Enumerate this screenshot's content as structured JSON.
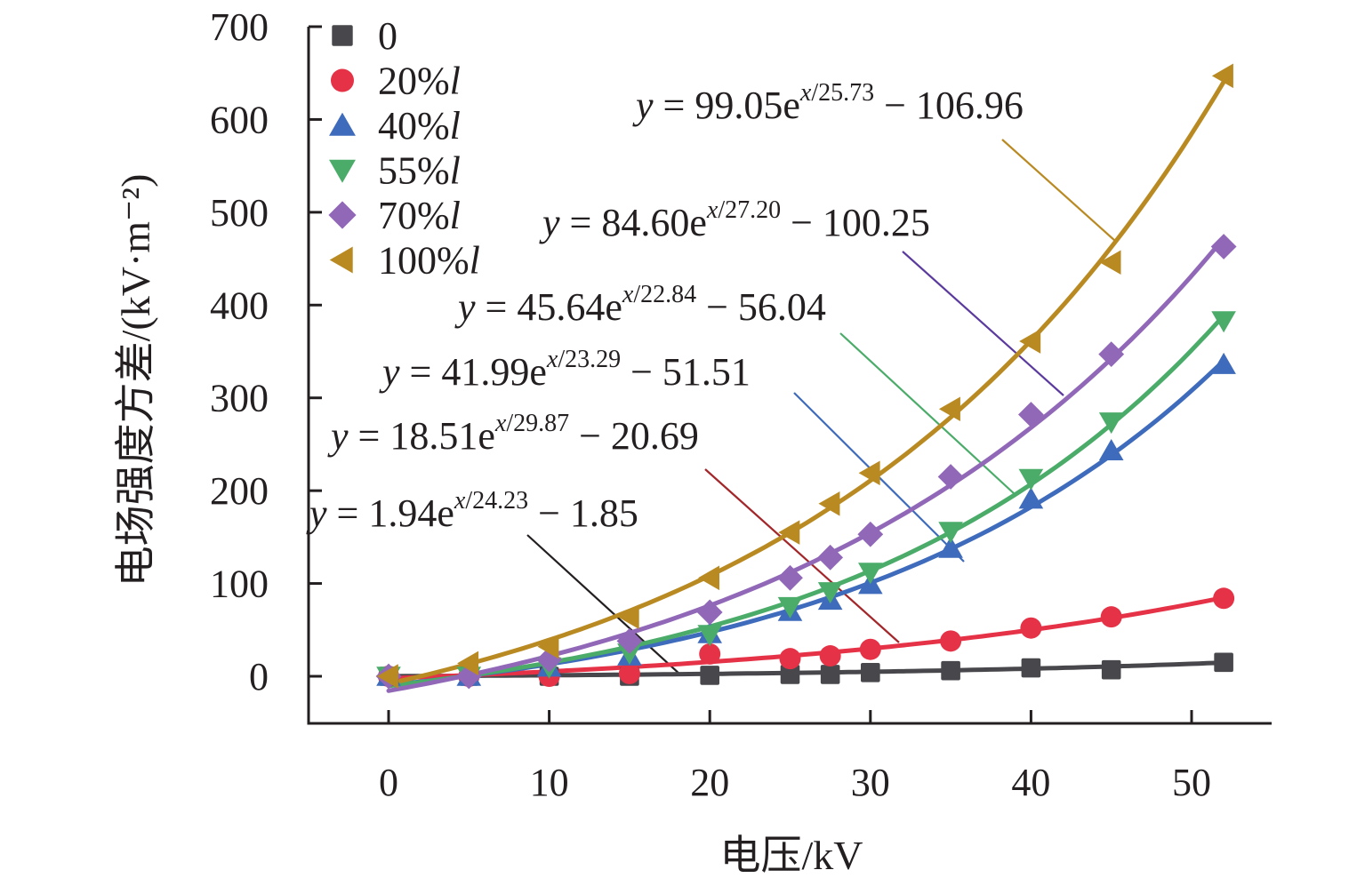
{
  "chart_data": {
    "type": "line",
    "title": "",
    "xlabel": "电压/kV",
    "ylabel": "电场强度方差/(kV·m⁻²)",
    "xlim": [
      -5,
      55
    ],
    "ylim": [
      -50,
      700
    ],
    "xticks": [
      0,
      10,
      20,
      30,
      40,
      50
    ],
    "yticks": [
      0,
      100,
      200,
      300,
      400,
      500,
      600,
      700
    ],
    "grid": false,
    "legend_position": "top-left",
    "x": [
      0,
      5,
      10,
      15,
      20,
      25,
      27.5,
      30,
      35,
      40,
      45,
      52
    ],
    "series": [
      {
        "name": "0",
        "marker": "square",
        "color": "#48484c",
        "values": [
          0,
          0,
          0,
          0,
          1,
          2,
          2,
          4,
          6,
          9,
          7,
          15
        ],
        "fit": {
          "a": 1.94,
          "b": 24.23,
          "c": 1.85,
          "equation": "y = 1.94e^(x/24.23) − 1.85"
        }
      },
      {
        "name": "20%l",
        "marker": "circle",
        "color": "#e63246",
        "values": [
          0,
          0,
          0,
          3,
          24,
          19,
          22,
          29,
          38,
          52,
          64,
          84
        ],
        "fit": {
          "a": 18.51,
          "b": 29.87,
          "c": 20.69,
          "equation": "y = 18.51e^(x/29.87) − 20.69"
        }
      },
      {
        "name": "40%l",
        "marker": "triangle-up",
        "color": "#3e6bbb",
        "values": [
          0,
          0,
          10,
          22,
          46,
          70,
          82,
          99,
          138,
          191,
          243,
          336
        ],
        "fit": {
          "a": 41.99,
          "b": 23.29,
          "c": 51.51,
          "equation": "y = 41.99e^(x/23.29) − 51.51"
        }
      },
      {
        "name": "55%l",
        "marker": "triangle-down",
        "color": "#4bac6a",
        "values": [
          0,
          0,
          10,
          25,
          45,
          75,
          91,
          112,
          156,
          213,
          274,
          383
        ],
        "fit": {
          "a": 45.64,
          "b": 22.84,
          "c": 56.04,
          "equation": "y = 45.64e^(x/22.84) − 56.04"
        }
      },
      {
        "name": "70%l",
        "marker": "diamond",
        "color": "#9168b8",
        "values": [
          0,
          0,
          18,
          38,
          69,
          106,
          128,
          153,
          215,
          282,
          347,
          463
        ],
        "fit": {
          "a": 84.6,
          "b": 27.2,
          "c": 100.25,
          "equation": "y = 84.60e^(x/27.20) − 100.25"
        }
      },
      {
        "name": "100%l",
        "marker": "triangle-left",
        "color": "#b98a22",
        "values": [
          0,
          14,
          32,
          64,
          106,
          155,
          186,
          219,
          288,
          361,
          446,
          647
        ],
        "fit": {
          "a": 99.05,
          "b": 25.73,
          "c": 106.96,
          "equation": "y = 99.05e^(x/25.73) − 106.96"
        }
      }
    ],
    "annotations": [
      {
        "series": "100%l",
        "prefix": "y = ",
        "coef": "99.05",
        "exp": "x/25.73",
        "tail": " − 106.96",
        "leader_color": "#b98a22"
      },
      {
        "series": "70%l",
        "prefix": "y = ",
        "coef": "84.60",
        "exp": "x/27.20",
        "tail": " − 100.25",
        "leader_color": "#5b3a9e"
      },
      {
        "series": "55%l",
        "prefix": "y = ",
        "coef": "45.64",
        "exp": "x/22.84",
        "tail": " − 56.04",
        "leader_color": "#4bac6a"
      },
      {
        "series": "40%l",
        "prefix": "y = ",
        "coef": "41.99",
        "exp": "x/23.29",
        "tail": " − 51.51",
        "leader_color": "#3e6bbb"
      },
      {
        "series": "20%l",
        "prefix": "y = ",
        "coef": "18.51",
        "exp": "x/29.87",
        "tail": " − 20.69",
        "leader_color": "#a3262a"
      },
      {
        "series": "0",
        "prefix": "y = ",
        "coef": "1.94",
        "exp": "x/24.23",
        "tail": " − 1.85",
        "leader_color": "#231f20"
      }
    ]
  }
}
